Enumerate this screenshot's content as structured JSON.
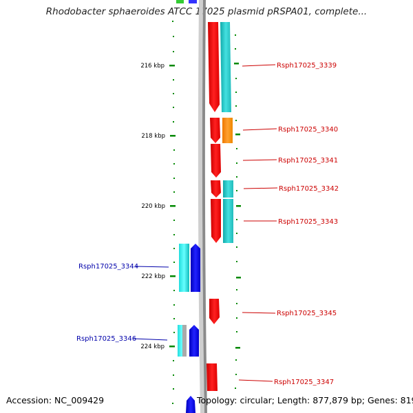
{
  "title": "Rhodobacter sphaeroides ATCC 17025 plasmid pRSPA01, complete...",
  "footer": {
    "accession": "Accession: NC_009429",
    "summary": "Topology: circular; Length: 877,879 bp; Genes: 819"
  },
  "ruler": {
    "labels": [
      "216 kbp",
      "218 kbp",
      "220 kbp",
      "222 kbp",
      "224 kbp"
    ]
  },
  "genes": [
    {
      "label": "Rsph17025_3339",
      "strand": "+"
    },
    {
      "label": "Rsph17025_3340",
      "strand": "+"
    },
    {
      "label": "Rsph17025_3341",
      "strand": "+"
    },
    {
      "label": "Rsph17025_3342",
      "strand": "+"
    },
    {
      "label": "Rsph17025_3343",
      "strand": "+"
    },
    {
      "label": "Rsph17025_3344",
      "strand": "-"
    },
    {
      "label": "Rsph17025_3345",
      "strand": "+"
    },
    {
      "label": "Rsph17025_3346",
      "strand": "-"
    },
    {
      "label": "Rsph17025_3347",
      "strand": "+"
    }
  ],
  "colors": {
    "forward_cds": "#ff0000",
    "forward_feature_cyan": "#22cccc",
    "forward_feature_orange": "#ff8800",
    "reverse_cds": "#0000ee",
    "reverse_feature_cyan": "#22dddd",
    "backbone": "#888888",
    "ruler_ticks": "#008800",
    "forward_labels": "#cc0000",
    "reverse_labels": "#0000aa"
  }
}
